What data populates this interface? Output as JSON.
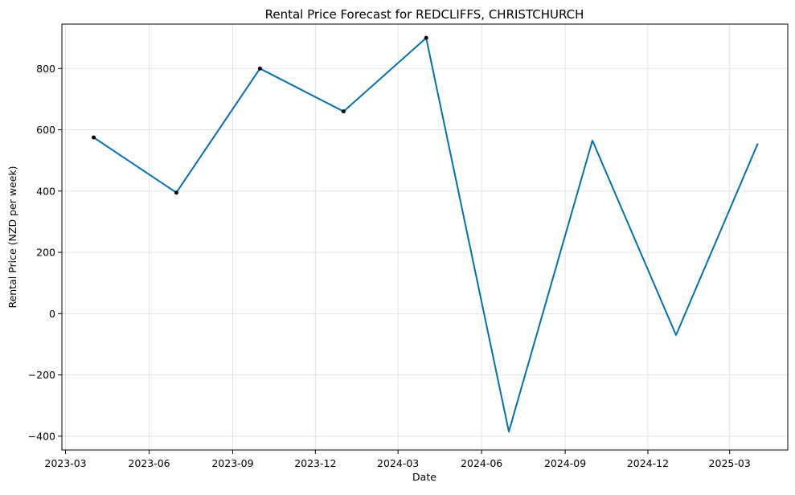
{
  "chart_data": {
    "type": "line",
    "title": "Rental Price Forecast for REDCLIFFS, CHRISTCHURCH",
    "xlabel": "Date",
    "ylabel": "Rental Price (NZD per week)",
    "x_ticks": [
      "2023-03",
      "2023-06",
      "2023-09",
      "2023-12",
      "2024-03",
      "2024-06",
      "2024-09",
      "2024-12",
      "2025-03"
    ],
    "y_ticks": [
      -400,
      -200,
      0,
      200,
      400,
      600,
      800
    ],
    "xlim": [
      "2023-02-25",
      "2025-05-04"
    ],
    "ylim": [
      -445,
      945
    ],
    "grid": true,
    "forecast": {
      "x": [
        "2023-04-01",
        "2023-07-01",
        "2023-10-01",
        "2024-01-01",
        "2024-04-01",
        "2024-07-01",
        "2024-10-01",
        "2025-01-01",
        "2025-04-01"
      ],
      "y": [
        575,
        395,
        800,
        660,
        900,
        -385,
        565,
        -70,
        555
      ],
      "color": "#0072b2"
    },
    "observed": {
      "x": [
        "2023-04-01",
        "2023-07-01",
        "2023-10-01",
        "2024-01-01",
        "2024-04-01"
      ],
      "y": [
        575,
        395,
        800,
        660,
        900
      ],
      "color": "#000000"
    }
  }
}
